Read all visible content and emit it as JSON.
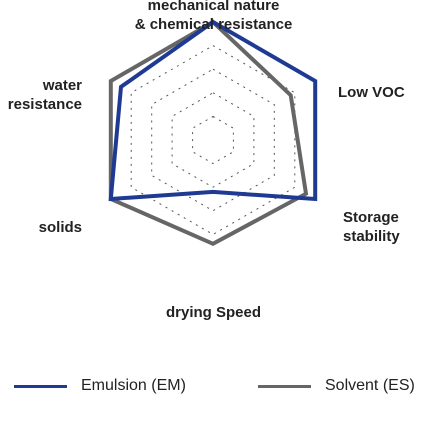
{
  "colors": {
    "emulsion": "#1f3a93",
    "solvent": "#666666",
    "grid": "#555555",
    "text": "#222222"
  },
  "chart_data": {
    "type": "radar",
    "axes": [
      [
        "mechanical nature",
        "& chemical resistance"
      ],
      [
        "Low VOC"
      ],
      [
        "Storage",
        "stability"
      ],
      [
        "drying Speed"
      ],
      [
        "solids"
      ],
      [
        "water",
        "resistance"
      ]
    ],
    "range": [
      0,
      5
    ],
    "grid_levels": [
      1,
      2,
      3,
      4
    ],
    "grid_style": "dashed",
    "legend_position": "bottom",
    "series": [
      {
        "name": "Emulsion (EM)",
        "values": [
          5,
          5,
          5,
          2.2,
          5,
          4.5
        ]
      },
      {
        "name": "Solvent (ES)",
        "values": [
          5,
          3.8,
          4.55,
          4.4,
          5,
          5
        ]
      }
    ]
  }
}
